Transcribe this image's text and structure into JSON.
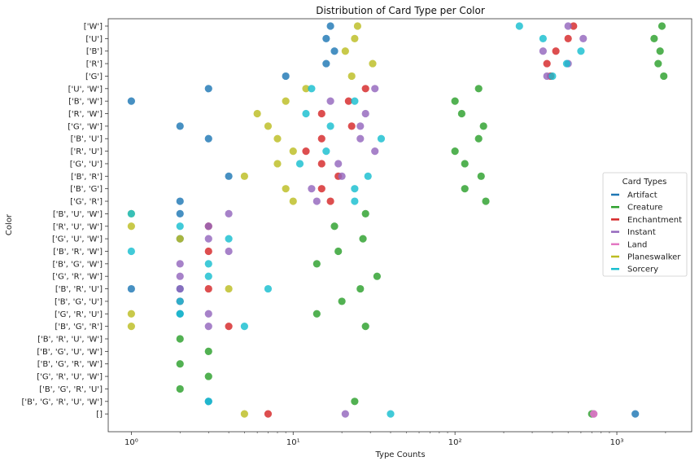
{
  "chart_data": {
    "type": "scatter",
    "title": "Distribution of Card Type per Color",
    "xlabel": "Type Counts",
    "ylabel": "Color",
    "xscale": "log",
    "xlim": [
      0.72,
      2900
    ],
    "xticks": [
      1,
      10,
      100,
      1000
    ],
    "xtick_labels": [
      "10⁰",
      "10¹",
      "10²",
      "10³"
    ],
    "grid": false,
    "categories": [
      "['W']",
      "['U']",
      "['B']",
      "['R']",
      "['G']",
      "['U', 'W']",
      "['B', 'W']",
      "['R', 'W']",
      "['G', 'W']",
      "['B', 'U']",
      "['R', 'U']",
      "['G', 'U']",
      "['B', 'R']",
      "['B', 'G']",
      "['G', 'R']",
      "['B', 'U', 'W']",
      "['R', 'U', 'W']",
      "['G', 'U', 'W']",
      "['B', 'R', 'W']",
      "['B', 'G', 'W']",
      "['G', 'R', 'W']",
      "['B', 'R', 'U']",
      "['B', 'G', 'U']",
      "['G', 'R', 'U']",
      "['B', 'G', 'R']",
      "['B', 'R', 'U', 'W']",
      "['B', 'G', 'U', 'W']",
      "['B', 'G', 'R', 'W']",
      "['G', 'R', 'U', 'W']",
      "['B', 'G', 'R', 'U']",
      "['B', 'G', 'R', 'U', 'W']",
      "[]"
    ],
    "legend": {
      "title": "Card Types",
      "placement": "center-right"
    },
    "series": [
      {
        "name": "Artifact",
        "color": "#1f77b4",
        "points": [
          [
            17,
            0
          ],
          [
            16,
            1
          ],
          [
            18,
            2
          ],
          [
            16,
            3
          ],
          [
            9,
            4
          ],
          [
            3,
            5
          ],
          [
            1,
            6
          ],
          [
            2,
            8
          ],
          [
            3,
            9
          ],
          [
            4,
            12
          ],
          [
            2,
            14
          ],
          [
            2,
            15
          ],
          [
            2,
            17
          ],
          [
            2,
            21
          ],
          [
            1,
            21
          ],
          [
            2,
            23
          ],
          [
            3,
            30
          ],
          [
            1300,
            31
          ]
        ]
      },
      {
        "name": "Creature",
        "color": "#2ca02c",
        "points": [
          [
            1900,
            0
          ],
          [
            1700,
            1
          ],
          [
            1850,
            2
          ],
          [
            1800,
            3
          ],
          [
            1950,
            4
          ],
          [
            140,
            5
          ],
          [
            100,
            6
          ],
          [
            110,
            7
          ],
          [
            150,
            8
          ],
          [
            140,
            9
          ],
          [
            100,
            10
          ],
          [
            115,
            11
          ],
          [
            145,
            12
          ],
          [
            115,
            13
          ],
          [
            155,
            14
          ],
          [
            28,
            15
          ],
          [
            18,
            16
          ],
          [
            27,
            17
          ],
          [
            19,
            18
          ],
          [
            14,
            19
          ],
          [
            33,
            20
          ],
          [
            26,
            21
          ],
          [
            20,
            22
          ],
          [
            14,
            23
          ],
          [
            28,
            24
          ],
          [
            2,
            25
          ],
          [
            3,
            26
          ],
          [
            2,
            27
          ],
          [
            3,
            28
          ],
          [
            2,
            29
          ],
          [
            24,
            30
          ],
          [
            700,
            31
          ]
        ]
      },
      {
        "name": "Enchantment",
        "color": "#d62728",
        "points": [
          [
            540,
            0
          ],
          [
            500,
            1
          ],
          [
            420,
            2
          ],
          [
            370,
            3
          ],
          [
            390,
            4
          ],
          [
            28,
            5
          ],
          [
            22,
            6
          ],
          [
            15,
            7
          ],
          [
            23,
            8
          ],
          [
            15,
            9
          ],
          [
            12,
            10
          ],
          [
            15,
            11
          ],
          [
            19,
            12
          ],
          [
            15,
            13
          ],
          [
            17,
            14
          ],
          [
            3,
            16
          ],
          [
            3,
            18
          ],
          [
            2,
            22
          ],
          [
            3,
            21
          ],
          [
            4,
            24
          ],
          [
            7,
            31
          ]
        ]
      },
      {
        "name": "Instant",
        "color": "#9467bd",
        "points": [
          [
            500,
            0
          ],
          [
            620,
            1
          ],
          [
            350,
            2
          ],
          [
            500,
            3
          ],
          [
            370,
            4
          ],
          [
            32,
            5
          ],
          [
            17,
            6
          ],
          [
            28,
            7
          ],
          [
            26,
            8
          ],
          [
            26,
            9
          ],
          [
            32,
            10
          ],
          [
            19,
            11
          ],
          [
            20,
            12
          ],
          [
            13,
            13
          ],
          [
            14,
            14
          ],
          [
            4,
            15
          ],
          [
            3,
            16
          ],
          [
            3,
            17
          ],
          [
            4,
            18
          ],
          [
            2,
            19
          ],
          [
            2,
            20
          ],
          [
            2,
            21
          ],
          [
            2,
            22
          ],
          [
            3,
            23
          ],
          [
            3,
            24
          ],
          [
            21,
            31
          ],
          [
            720,
            31
          ]
        ]
      },
      {
        "name": "Land",
        "color": "#e377c2",
        "points": [
          [
            720,
            31
          ]
        ]
      },
      {
        "name": "Planeswalker",
        "color": "#bcbd22",
        "points": [
          [
            25,
            0
          ],
          [
            24,
            1
          ],
          [
            21,
            2
          ],
          [
            31,
            3
          ],
          [
            23,
            4
          ],
          [
            12,
            5
          ],
          [
            9,
            6
          ],
          [
            6,
            7
          ],
          [
            7,
            8
          ],
          [
            8,
            9
          ],
          [
            10,
            10
          ],
          [
            8,
            11
          ],
          [
            5,
            12
          ],
          [
            9,
            13
          ],
          [
            10,
            14
          ],
          [
            1,
            15
          ],
          [
            1,
            16
          ],
          [
            2,
            17
          ],
          [
            4,
            21
          ],
          [
            1,
            23
          ],
          [
            1,
            24
          ],
          [
            5,
            31
          ]
        ]
      },
      {
        "name": "Sorcery",
        "color": "#17becf",
        "points": [
          [
            250,
            0
          ],
          [
            350,
            1
          ],
          [
            600,
            2
          ],
          [
            490,
            3
          ],
          [
            400,
            4
          ],
          [
            13,
            5
          ],
          [
            24,
            6
          ],
          [
            12,
            7
          ],
          [
            17,
            8
          ],
          [
            35,
            9
          ],
          [
            16,
            10
          ],
          [
            11,
            11
          ],
          [
            29,
            12
          ],
          [
            24,
            13
          ],
          [
            24,
            14
          ],
          [
            1,
            15
          ],
          [
            2,
            16
          ],
          [
            4,
            17
          ],
          [
            1,
            18
          ],
          [
            3,
            19
          ],
          [
            3,
            20
          ],
          [
            7,
            21
          ],
          [
            2,
            22
          ],
          [
            2,
            23
          ],
          [
            5,
            24
          ],
          [
            3,
            30
          ],
          [
            40,
            31
          ]
        ]
      }
    ]
  }
}
